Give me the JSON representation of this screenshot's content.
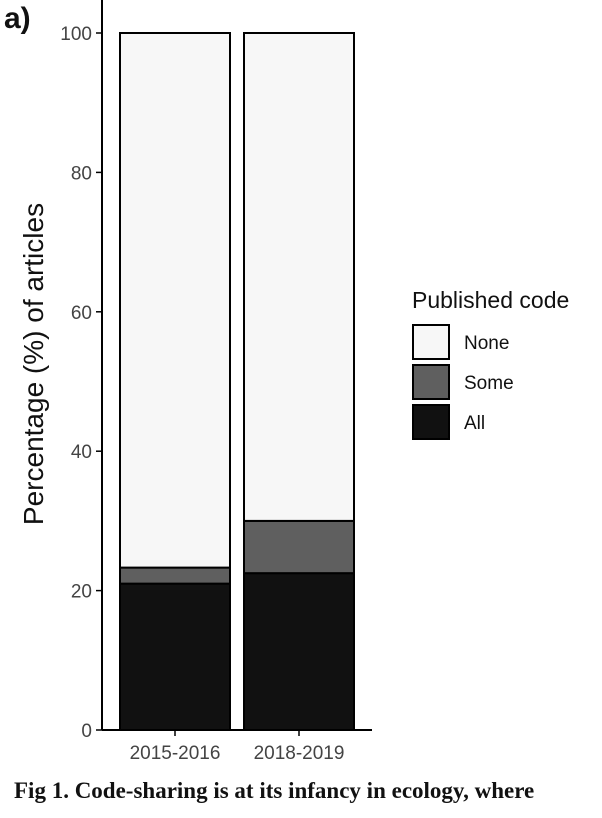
{
  "panel_label": "a)",
  "caption": "Fig 1.  Code-sharing is at its infancy in ecology, where",
  "colors": {
    "None": "#f7f7f7",
    "Some": "#5f5f5f",
    "All": "#111111"
  },
  "chart_data": {
    "type": "bar",
    "stacked": true,
    "categories": [
      "2015-2016",
      "2018-2019"
    ],
    "series": [
      {
        "name": "All",
        "values": [
          21.0,
          22.5
        ]
      },
      {
        "name": "Some",
        "values": [
          2.3,
          7.5
        ]
      },
      {
        "name": "None",
        "values": [
          76.7,
          70.0
        ]
      }
    ],
    "ylabel": "Percentage (%) of articles",
    "ylim": [
      0,
      100
    ],
    "yticks": [
      0,
      20,
      40,
      60,
      80,
      100
    ],
    "grid": false,
    "legend": {
      "title": "Published code",
      "placement": "right",
      "entries": [
        "None",
        "Some",
        "All"
      ]
    }
  }
}
